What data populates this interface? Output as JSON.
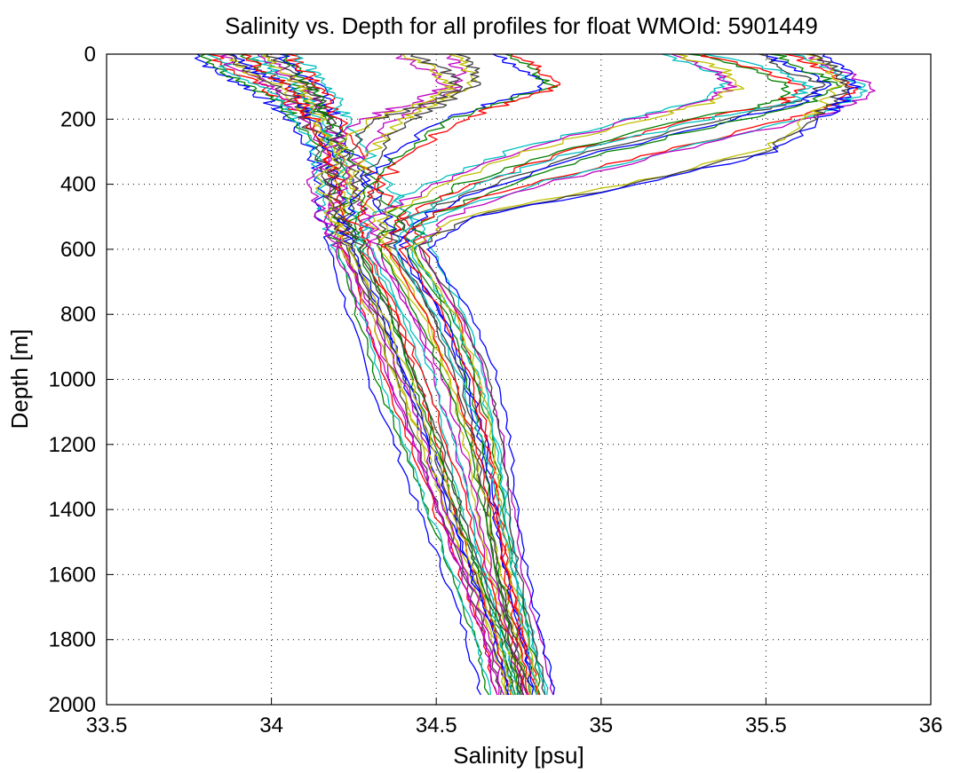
{
  "chart_data": {
    "type": "line",
    "title": "Salinity vs. Depth for all profiles for float WMOId: 5901449",
    "xlabel": "Salinity [psu]",
    "ylabel": "Depth [m]",
    "xlim": [
      33.5,
      36
    ],
    "ylim": [
      0,
      2000
    ],
    "y_reversed": true,
    "x_ticks": [
      33.5,
      34,
      34.5,
      35,
      35.5,
      36
    ],
    "x_tick_labels": [
      "33.5",
      "34",
      "34.5",
      "35",
      "35.5",
      "36"
    ],
    "y_ticks": [
      0,
      200,
      400,
      600,
      800,
      1000,
      1200,
      1400,
      1600,
      1800,
      2000
    ],
    "y_tick_labels": [
      "0",
      "200",
      "400",
      "600",
      "800",
      "1000",
      "1200",
      "1400",
      "1600",
      "1800",
      "2000"
    ],
    "grid": true,
    "series_colors": [
      "#0000ff",
      "#008000",
      "#ff0000",
      "#00bfbf",
      "#bf00bf",
      "#bfbf00",
      "#404040"
    ],
    "depth": [
      0,
      50,
      100,
      150,
      200,
      300,
      400,
      500,
      600,
      800,
      1000,
      1200,
      1400,
      1600,
      1800,
      1970
    ],
    "series": [
      {
        "values": [
          33.8,
          33.85,
          33.95,
          34.02,
          34.08,
          34.15,
          34.17,
          34.18,
          34.2,
          34.26,
          34.32,
          34.4,
          34.47,
          34.55,
          34.62,
          34.66
        ]
      },
      {
        "values": [
          33.85,
          33.9,
          34.0,
          34.06,
          34.1,
          34.16,
          34.18,
          34.19,
          34.22,
          34.3,
          34.36,
          34.43,
          34.5,
          34.58,
          34.65,
          34.69
        ]
      },
      {
        "values": [
          33.9,
          33.95,
          34.05,
          34.1,
          34.13,
          34.17,
          34.2,
          34.22,
          34.25,
          34.34,
          34.4,
          34.47,
          34.53,
          34.61,
          34.68,
          34.72
        ]
      },
      {
        "values": [
          33.95,
          34.0,
          34.08,
          34.12,
          34.15,
          34.19,
          34.23,
          34.26,
          34.3,
          34.4,
          34.47,
          34.53,
          34.58,
          34.64,
          34.71,
          34.75
        ]
      },
      {
        "values": [
          34.0,
          34.05,
          34.12,
          34.15,
          34.17,
          34.22,
          34.28,
          34.33,
          34.38,
          34.49,
          34.56,
          34.61,
          34.65,
          34.69,
          34.74,
          34.78
        ]
      },
      {
        "values": [
          34.05,
          34.1,
          34.15,
          34.18,
          34.2,
          34.26,
          34.33,
          34.4,
          34.46,
          34.56,
          34.62,
          34.66,
          34.69,
          34.72,
          34.77,
          34.81
        ]
      },
      {
        "values": [
          34.55,
          34.6,
          34.6,
          34.5,
          34.4,
          34.3,
          34.24,
          34.2,
          34.22,
          34.3,
          34.38,
          34.46,
          34.53,
          34.6,
          34.67,
          34.71
        ]
      },
      {
        "values": [
          34.7,
          34.8,
          34.85,
          34.7,
          34.55,
          34.4,
          34.3,
          34.25,
          34.26,
          34.36,
          34.44,
          34.51,
          34.57,
          34.63,
          34.7,
          34.74
        ]
      },
      {
        "values": [
          35.2,
          35.35,
          35.4,
          35.3,
          35.1,
          34.75,
          34.5,
          34.32,
          34.3,
          34.43,
          34.52,
          34.58,
          34.63,
          34.67,
          34.72,
          34.76
        ]
      },
      {
        "values": [
          35.5,
          35.6,
          35.7,
          35.6,
          35.4,
          35.0,
          34.7,
          34.45,
          34.38,
          34.52,
          34.6,
          34.65,
          34.68,
          34.71,
          34.76,
          34.79
        ]
      },
      {
        "values": [
          35.6,
          35.7,
          35.8,
          35.75,
          35.6,
          35.2,
          34.8,
          34.5,
          34.42,
          34.55,
          34.63,
          34.68,
          34.71,
          34.74,
          34.79,
          34.83
        ]
      },
      {
        "values": [
          35.65,
          35.72,
          35.75,
          35.7,
          35.65,
          35.5,
          35.1,
          34.6,
          34.45,
          34.58,
          34.66,
          34.7,
          34.72,
          34.75,
          34.8,
          34.83
        ]
      },
      {
        "values": [
          35.3,
          35.5,
          35.6,
          35.55,
          35.3,
          34.9,
          34.6,
          34.4,
          34.35,
          34.47,
          34.55,
          34.62,
          34.67,
          34.71,
          34.75,
          34.78
        ]
      },
      {
        "values": [
          34.4,
          34.5,
          34.55,
          34.45,
          34.3,
          34.2,
          34.15,
          34.18,
          34.24,
          34.34,
          34.42,
          34.49,
          34.55,
          34.62,
          34.69,
          34.73
        ]
      }
    ]
  }
}
